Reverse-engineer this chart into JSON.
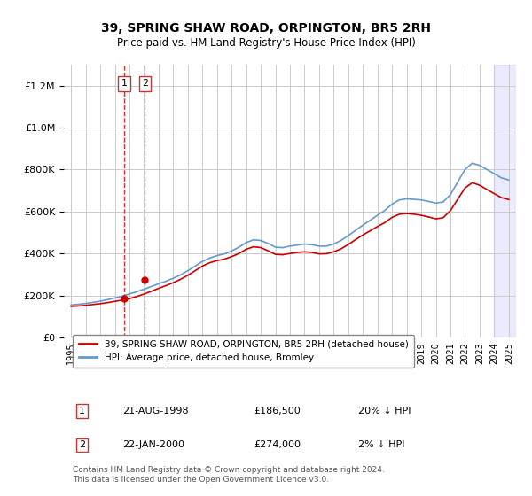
{
  "title": "39, SPRING SHAW ROAD, ORPINGTON, BR5 2RH",
  "subtitle": "Price paid vs. HM Land Registry's House Price Index (HPI)",
  "legend_line1": "39, SPRING SHAW ROAD, ORPINGTON, BR5 2RH (detached house)",
  "legend_line2": "HPI: Average price, detached house, Bromley",
  "footer": "Contains HM Land Registry data © Crown copyright and database right 2024.\nThis data is licensed under the Open Government Licence v3.0.",
  "annotation1_label": "1",
  "annotation1_date": "21-AUG-1998",
  "annotation1_price": "£186,500",
  "annotation1_hpi": "20% ↓ HPI",
  "annotation2_label": "2",
  "annotation2_date": "22-JAN-2000",
  "annotation2_price": "£274,000",
  "annotation2_hpi": "2% ↓ HPI",
  "sale1_x": 1998.64,
  "sale1_y": 186500,
  "sale2_x": 2000.06,
  "sale2_y": 274000,
  "ylim": [
    0,
    1300000
  ],
  "xlim": [
    1994.5,
    2025.5
  ],
  "hpi_color": "#6699cc",
  "price_color": "#cc0000",
  "sale_dot_color": "#cc0000",
  "vline_color1": "#cc3333",
  "vline_color2": "#aabbdd",
  "grid_color": "#cccccc",
  "bg_color": "#ffffff",
  "hpi_x": [
    1995,
    1995.5,
    1996,
    1996.5,
    1997,
    1997.5,
    1998,
    1998.5,
    1999,
    1999.5,
    2000,
    2000.5,
    2001,
    2001.5,
    2002,
    2002.5,
    2003,
    2003.5,
    2004,
    2004.5,
    2005,
    2005.5,
    2006,
    2006.5,
    2007,
    2007.5,
    2008,
    2008.5,
    2009,
    2009.5,
    2010,
    2010.5,
    2011,
    2011.5,
    2012,
    2012.5,
    2013,
    2013.5,
    2014,
    2014.5,
    2015,
    2015.5,
    2016,
    2016.5,
    2017,
    2017.5,
    2018,
    2018.5,
    2019,
    2019.5,
    2020,
    2020.5,
    2021,
    2021.5,
    2022,
    2022.5,
    2023,
    2023.5,
    2024,
    2024.5,
    2025
  ],
  "hpi_y": [
    155000,
    158000,
    162000,
    167000,
    173000,
    180000,
    188000,
    197000,
    207000,
    218000,
    230000,
    243000,
    256000,
    268000,
    282000,
    298000,
    318000,
    340000,
    362000,
    378000,
    390000,
    398000,
    412000,
    430000,
    452000,
    465000,
    462000,
    448000,
    430000,
    428000,
    435000,
    440000,
    445000,
    442000,
    435000,
    435000,
    445000,
    462000,
    485000,
    510000,
    535000,
    558000,
    582000,
    605000,
    635000,
    655000,
    660000,
    658000,
    655000,
    648000,
    640000,
    645000,
    680000,
    740000,
    800000,
    830000,
    820000,
    800000,
    780000,
    760000,
    750000
  ],
  "price_x": [
    1995,
    1995.5,
    1996,
    1996.5,
    1997,
    1997.5,
    1998,
    1998.5,
    1999,
    1999.5,
    2000,
    2000.5,
    2001,
    2001.5,
    2002,
    2002.5,
    2003,
    2003.5,
    2004,
    2004.5,
    2005,
    2005.5,
    2006,
    2006.5,
    2007,
    2007.5,
    2008,
    2008.5,
    2009,
    2009.5,
    2010,
    2010.5,
    2011,
    2011.5,
    2012,
    2012.5,
    2013,
    2013.5,
    2014,
    2014.5,
    2015,
    2015.5,
    2016,
    2016.5,
    2017,
    2017.5,
    2018,
    2018.5,
    2019,
    2019.5,
    2020,
    2020.5,
    2021,
    2021.5,
    2022,
    2022.5,
    2023,
    2023.5,
    2024,
    2024.5,
    2025
  ],
  "price_y": [
    148000,
    150000,
    153000,
    157000,
    161000,
    166000,
    172000,
    178000,
    185000,
    195000,
    207000,
    220000,
    234000,
    247000,
    261000,
    277000,
    296000,
    318000,
    340000,
    356000,
    366000,
    373000,
    385000,
    400000,
    420000,
    432000,
    428000,
    413000,
    396000,
    394000,
    400000,
    405000,
    408000,
    405000,
    398000,
    399000,
    408000,
    422000,
    443000,
    466000,
    488000,
    508000,
    528000,
    547000,
    572000,
    587000,
    590000,
    587000,
    582000,
    574000,
    565000,
    570000,
    604000,
    658000,
    712000,
    737000,
    725000,
    705000,
    685000,
    666000,
    657000
  ],
  "xtick_years": [
    1995,
    1996,
    1997,
    1998,
    1999,
    2000,
    2001,
    2002,
    2003,
    2004,
    2005,
    2006,
    2007,
    2008,
    2009,
    2010,
    2011,
    2012,
    2013,
    2014,
    2015,
    2016,
    2017,
    2018,
    2019,
    2020,
    2021,
    2022,
    2023,
    2024,
    2025
  ]
}
